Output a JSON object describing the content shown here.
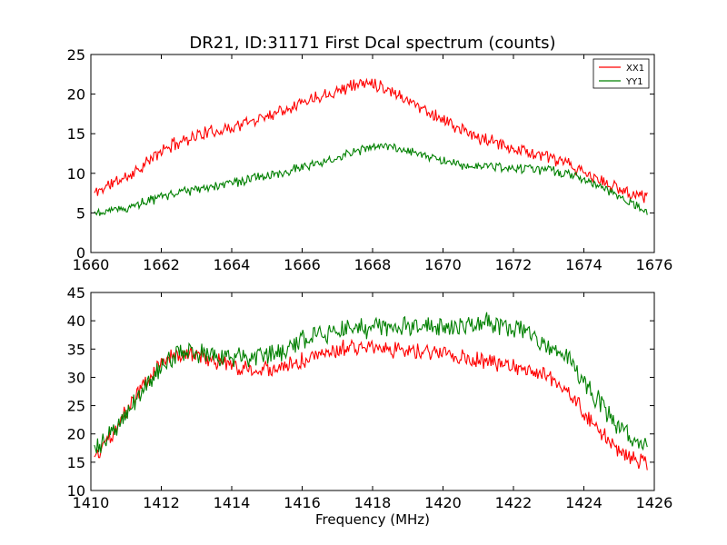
{
  "chart_data": [
    {
      "type": "line",
      "title": "DR21, ID:31171 First Dcal spectrum (counts)",
      "xlabel": "",
      "ylabel": "",
      "xlim": [
        1660,
        1676
      ],
      "ylim": [
        0,
        25
      ],
      "xticks": [
        1660,
        1662,
        1664,
        1666,
        1668,
        1670,
        1672,
        1674,
        1676
      ],
      "yticks": [
        0,
        5,
        10,
        15,
        20,
        25
      ],
      "grid": false,
      "legend": "top-right",
      "series": [
        {
          "name": "XX1",
          "color": "#ff0000",
          "noise": 0.7,
          "x": [
            1660.1,
            1660.5,
            1661.0,
            1661.5,
            1662.0,
            1662.5,
            1663.0,
            1663.5,
            1664.0,
            1664.5,
            1665.0,
            1665.5,
            1666.0,
            1666.5,
            1667.0,
            1667.5,
            1668.0,
            1668.5,
            1669.0,
            1669.5,
            1670.0,
            1670.5,
            1671.0,
            1671.5,
            1672.0,
            1672.5,
            1673.0,
            1673.5,
            1674.0,
            1674.5,
            1675.0,
            1675.5,
            1675.8
          ],
          "y": [
            7.5,
            8.5,
            9.5,
            11.0,
            12.8,
            14.0,
            14.8,
            15.3,
            15.8,
            16.5,
            17.3,
            18.2,
            19.0,
            19.8,
            20.5,
            21.2,
            21.5,
            20.5,
            19.3,
            18.0,
            16.8,
            15.5,
            14.5,
            13.8,
            13.2,
            12.6,
            12.0,
            11.2,
            10.0,
            9.0,
            8.0,
            7.3,
            7.2
          ]
        },
        {
          "name": "YY1",
          "color": "#008000",
          "noise": 0.5,
          "x": [
            1660.1,
            1660.5,
            1661.0,
            1661.5,
            1662.0,
            1662.5,
            1663.0,
            1663.5,
            1664.0,
            1664.5,
            1665.0,
            1665.5,
            1666.0,
            1666.5,
            1667.0,
            1667.5,
            1668.0,
            1668.5,
            1669.0,
            1669.5,
            1670.0,
            1670.5,
            1671.0,
            1671.5,
            1672.0,
            1672.5,
            1673.0,
            1673.5,
            1674.0,
            1674.5,
            1675.0,
            1675.5,
            1675.8
          ],
          "y": [
            5.0,
            5.3,
            5.6,
            6.3,
            7.0,
            7.5,
            7.9,
            8.3,
            8.7,
            9.2,
            9.7,
            10.2,
            10.8,
            11.4,
            12.0,
            12.7,
            13.3,
            13.3,
            12.9,
            12.3,
            11.6,
            11.1,
            10.9,
            10.7,
            10.6,
            10.5,
            10.3,
            10.0,
            9.2,
            8.2,
            7.0,
            5.9,
            5.2
          ]
        }
      ]
    },
    {
      "type": "line",
      "title": "",
      "xlabel": "Frequency (MHz)",
      "ylabel": "",
      "xlim": [
        1410,
        1426
      ],
      "ylim": [
        10,
        45
      ],
      "xticks": [
        1410,
        1412,
        1414,
        1416,
        1418,
        1420,
        1422,
        1424,
        1426
      ],
      "yticks": [
        10,
        15,
        20,
        25,
        30,
        35,
        40,
        45
      ],
      "grid": false,
      "series": [
        {
          "color": "#ff0000",
          "noise": 1.2,
          "x": [
            1410.1,
            1410.5,
            1411.0,
            1411.5,
            1412.0,
            1412.5,
            1413.0,
            1413.5,
            1414.0,
            1414.5,
            1415.0,
            1415.5,
            1416.0,
            1416.5,
            1417.0,
            1417.5,
            1418.0,
            1418.5,
            1419.0,
            1419.5,
            1420.0,
            1420.5,
            1421.0,
            1421.5,
            1422.0,
            1422.5,
            1423.0,
            1423.5,
            1424.0,
            1424.5,
            1425.0,
            1425.5,
            1425.8
          ],
          "y": [
            16.0,
            19.0,
            24.0,
            29.0,
            32.5,
            34.0,
            34.0,
            33.0,
            32.0,
            31.5,
            31.5,
            32.0,
            33.0,
            34.0,
            35.0,
            35.5,
            35.5,
            35.0,
            34.5,
            34.5,
            34.5,
            33.5,
            33.0,
            32.5,
            32.0,
            31.0,
            30.0,
            28.0,
            24.0,
            20.0,
            17.0,
            15.5,
            15.0
          ]
        },
        {
          "color": "#008000",
          "noise": 1.5,
          "x": [
            1410.1,
            1410.5,
            1411.0,
            1411.5,
            1412.0,
            1412.5,
            1413.0,
            1413.5,
            1414.0,
            1414.5,
            1415.0,
            1415.5,
            1416.0,
            1416.5,
            1417.0,
            1417.5,
            1418.0,
            1418.5,
            1419.0,
            1419.5,
            1420.0,
            1420.5,
            1421.0,
            1421.5,
            1422.0,
            1422.5,
            1423.0,
            1423.5,
            1424.0,
            1424.5,
            1425.0,
            1425.5,
            1425.8
          ],
          "y": [
            17.5,
            19.5,
            23.5,
            28.0,
            32.0,
            34.5,
            34.5,
            34.0,
            33.5,
            33.5,
            34.0,
            35.0,
            36.5,
            37.5,
            38.0,
            38.5,
            39.0,
            39.0,
            39.0,
            39.0,
            39.0,
            39.0,
            39.5,
            39.5,
            39.0,
            37.5,
            35.5,
            33.5,
            29.5,
            25.0,
            21.0,
            18.0,
            17.5
          ]
        }
      ]
    }
  ]
}
